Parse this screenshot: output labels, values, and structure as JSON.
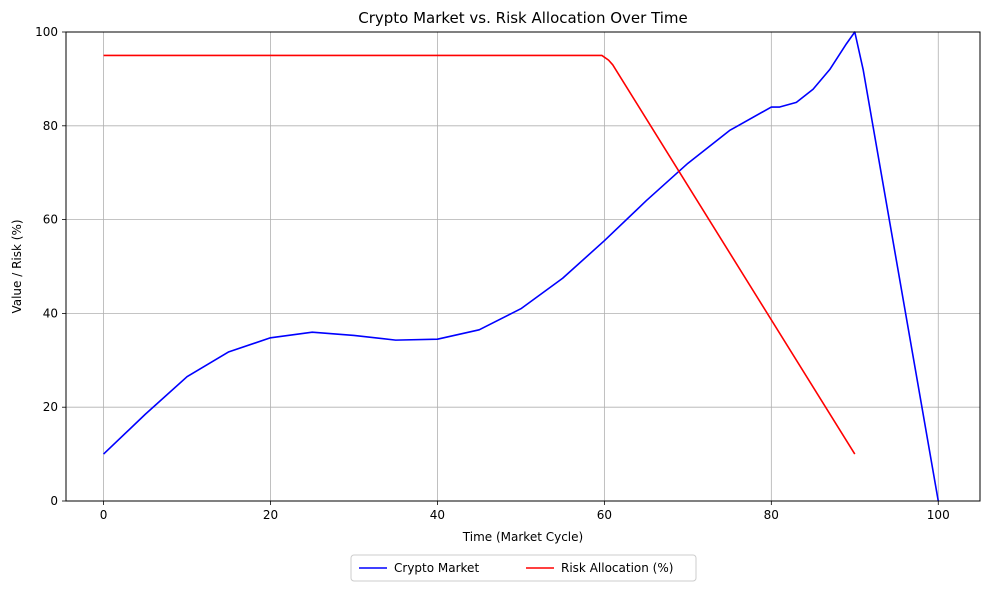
{
  "chart_data": {
    "type": "line",
    "title": "Crypto Market vs. Risk Allocation Over Time",
    "xlabel": "Time (Market Cycle)",
    "ylabel": "Value / Risk (%)",
    "xlim": [
      -4.5,
      105
    ],
    "ylim": [
      0,
      100
    ],
    "xticks": [
      0,
      20,
      40,
      60,
      80,
      100
    ],
    "yticks": [
      0,
      20,
      40,
      60,
      80,
      100
    ],
    "grid": true,
    "legend_position": "bottom-center",
    "series": [
      {
        "name": "Crypto Market",
        "color": "#0000ff",
        "x": [
          0,
          5,
          10,
          15,
          20,
          25,
          30,
          35,
          40,
          45,
          50,
          55,
          60,
          65,
          70,
          75,
          80,
          81,
          83,
          85,
          87,
          89,
          90,
          91,
          100
        ],
        "y": [
          10,
          18.5,
          26.5,
          31.8,
          34.8,
          36,
          35.3,
          34.3,
          34.5,
          36.5,
          41,
          47.5,
          55.5,
          64,
          72,
          79,
          84,
          84,
          85,
          87.8,
          92,
          97.5,
          100,
          92,
          0
        ]
      },
      {
        "name": "Risk Allocation (%)",
        "color": "#ff0000",
        "x": [
          0,
          10,
          20,
          30,
          40,
          50,
          59.7,
          60.5,
          61,
          90
        ],
        "y": [
          95,
          95,
          95,
          95,
          95,
          95,
          95,
          94,
          93,
          10
        ]
      }
    ]
  }
}
